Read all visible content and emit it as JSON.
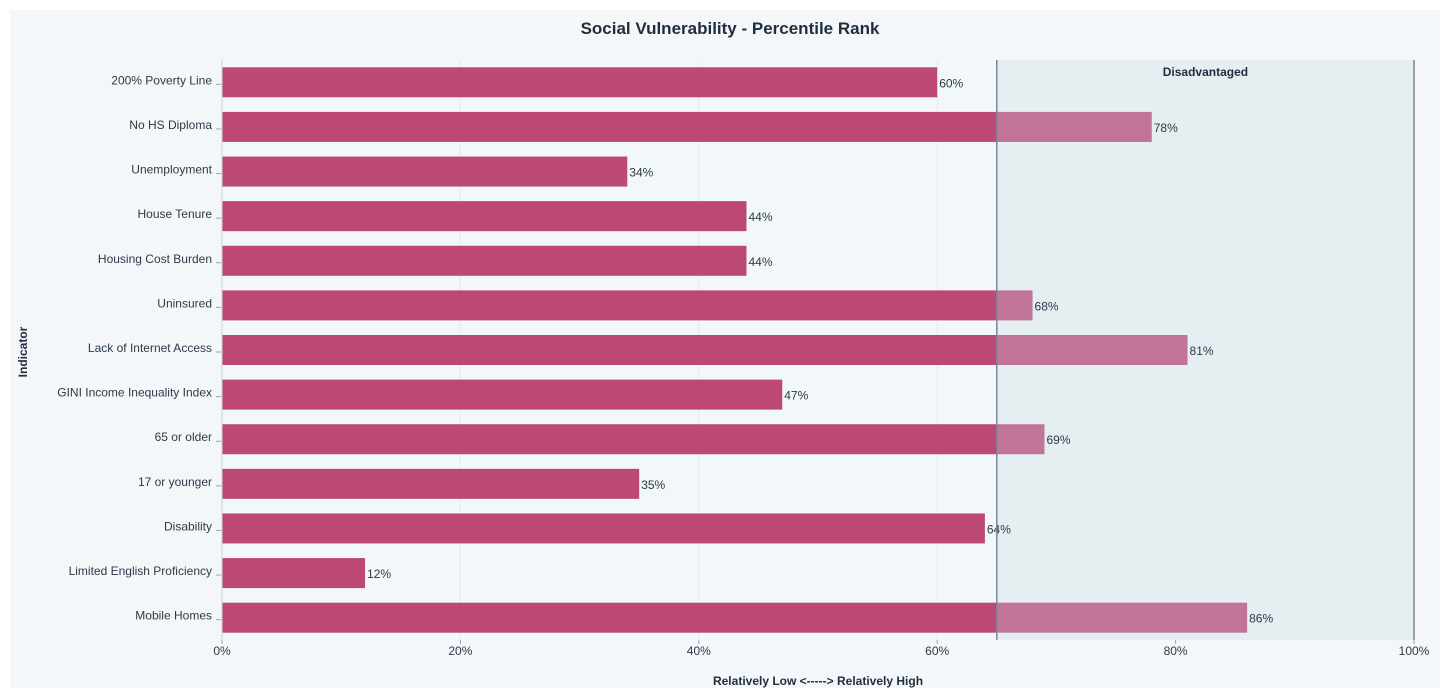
{
  "chart_data": {
    "type": "bar",
    "orientation": "horizontal",
    "title": "Social Vulnerability - Percentile Rank",
    "ylabel": "Indicator",
    "xlabel": "Relatively Low <-----> Relatively High",
    "categories": [
      "200% Poverty Line",
      "No HS Diploma",
      "Unemployment",
      "House Tenure",
      "Housing Cost Burden",
      "Uninsured",
      "Lack of Internet Access",
      "GINI Income Inequality Index",
      "65 or older",
      "17 or younger",
      "Disability",
      "Limited English Proficiency",
      "Mobile Homes"
    ],
    "values": [
      60,
      78,
      34,
      44,
      44,
      68,
      81,
      47,
      69,
      35,
      64,
      12,
      86
    ],
    "value_labels": [
      "60%",
      "78%",
      "34%",
      "44%",
      "44%",
      "68%",
      "81%",
      "47%",
      "69%",
      "35%",
      "64%",
      "12%",
      "86%"
    ],
    "xlim": [
      0,
      100
    ],
    "x_ticks": [
      0,
      20,
      40,
      60,
      80,
      100
    ],
    "x_tick_labels": [
      "0%",
      "20%",
      "40%",
      "60%",
      "80%",
      "100%"
    ],
    "threshold": 65,
    "region": {
      "label": "Disadvantaged",
      "from": 65,
      "to": 100
    },
    "grid": true,
    "colors": {
      "bar": "#bc4876",
      "bar_above_threshold": "#c07498",
      "region_fill": "#e5eef1",
      "plot_bg": "#f2f7f9",
      "threshold_line": "#7c8598",
      "text": "#1f2d3d"
    }
  }
}
